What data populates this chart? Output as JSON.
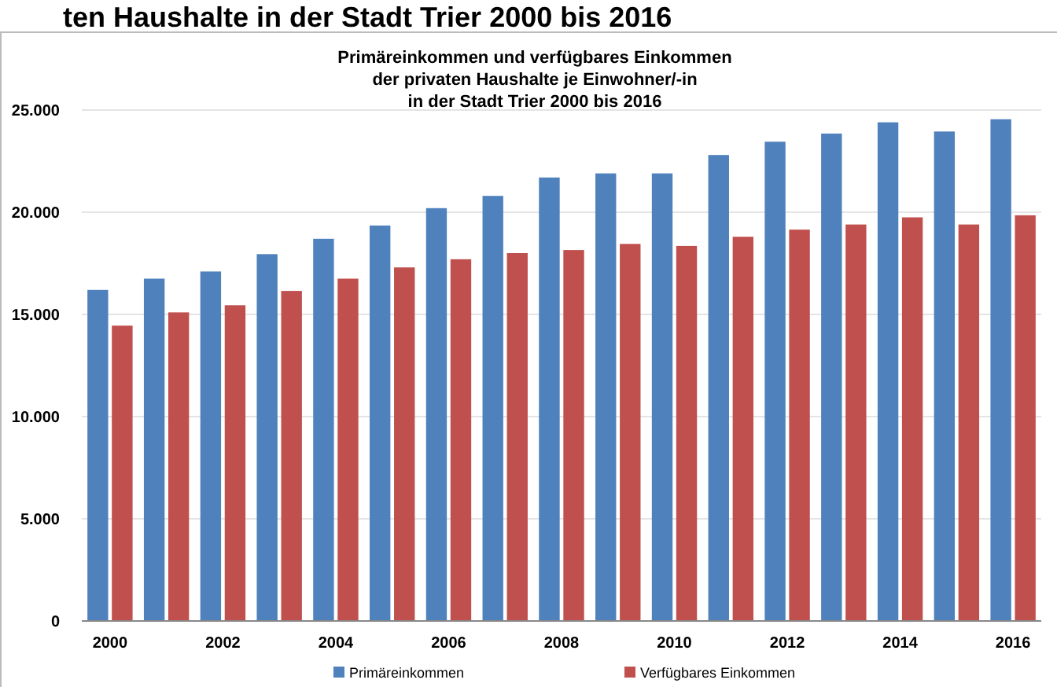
{
  "chart_data": {
    "type": "bar",
    "title": "Primäreinkommen und verfügbares Einkommen\nder privaten Haushalte je Einwohner/-in\nin der Stadt Trier 2000 bis 2016",
    "annotations": [
      "ten Haushalte in der Stadt Trier 2000 bis 2016"
    ],
    "categories": [
      "2000",
      null,
      "2002",
      null,
      "2004",
      null,
      "2006",
      null,
      "2008",
      null,
      "2010",
      null,
      "2012",
      null,
      "2014",
      null,
      "2016"
    ],
    "series": [
      {
        "name": "Primäreinkommen",
        "color": "#4f81bd",
        "values": [
          16200,
          16750,
          17100,
          17950,
          18700,
          19350,
          20200,
          20800,
          21700,
          21900,
          21900,
          22800,
          23450,
          23850,
          24400,
          23950,
          24550
        ]
      },
      {
        "name": "Verfügbares Einkommen",
        "color": "#c0504d",
        "values": [
          14450,
          15100,
          15450,
          16150,
          16750,
          17300,
          17700,
          18000,
          18150,
          18450,
          18350,
          18800,
          19150,
          19400,
          19750,
          19400,
          19850
        ]
      }
    ],
    "ylim": [
      0,
      25000
    ],
    "yticks": [
      0,
      {
        "value": 5000,
        "label": "5.000"
      },
      {
        "value": 10000,
        "label": "10.000"
      },
      {
        "value": 15000,
        "label": "15.000"
      },
      {
        "value": 20000,
        "label": "20.000"
      },
      {
        "value": 25000,
        "label": "25.000"
      }
    ],
    "grid": "y",
    "legend": "bottom"
  }
}
